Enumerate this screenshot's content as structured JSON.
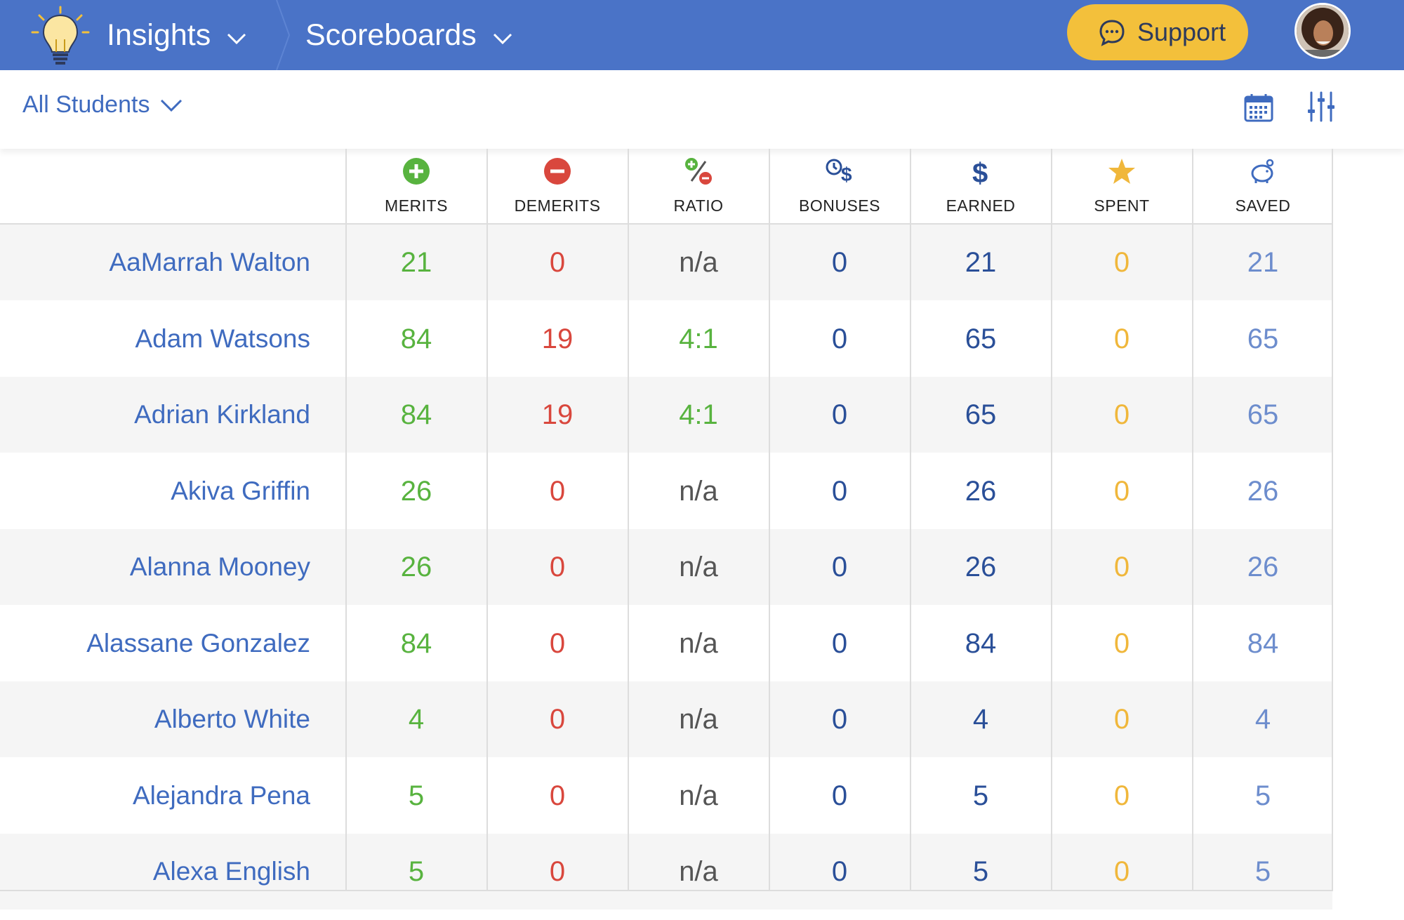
{
  "topbar": {
    "nav_insights": "Insights",
    "nav_scoreboards": "Scoreboards",
    "support_label": "Support",
    "colors": {
      "bar": "#4a73c7",
      "support": "#f3c03b"
    }
  },
  "filter": {
    "students_label": "All Students"
  },
  "icons": {
    "logo": "lightbulb-icon",
    "calendar": "calendar-icon",
    "filters": "sliders-icon",
    "support": "chat-bubble-icon"
  },
  "table": {
    "columns": [
      {
        "key": "merits",
        "label": "MERITS",
        "icon": "plus-circle-icon"
      },
      {
        "key": "demerits",
        "label": "DEMERITS",
        "icon": "minus-circle-icon"
      },
      {
        "key": "ratio",
        "label": "RATIO",
        "icon": "ratio-icon"
      },
      {
        "key": "bonuses",
        "label": "BONUSES",
        "icon": "bonus-clock-dollar-icon"
      },
      {
        "key": "earned",
        "label": "EARNED",
        "icon": "dollar-icon"
      },
      {
        "key": "spent",
        "label": "SPENT",
        "icon": "star-icon"
      },
      {
        "key": "saved",
        "label": "SAVED",
        "icon": "piggy-bank-icon"
      }
    ],
    "rows": [
      {
        "name": "AaMarrah Walton",
        "merits": "21",
        "demerits": "0",
        "ratio": "n/a",
        "bonuses": "0",
        "earned": "21",
        "spent": "0",
        "saved": "21"
      },
      {
        "name": "Adam Watsons",
        "merits": "84",
        "demerits": "19",
        "ratio": "4:1",
        "bonuses": "0",
        "earned": "65",
        "spent": "0",
        "saved": "65"
      },
      {
        "name": "Adrian Kirkland",
        "merits": "84",
        "demerits": "19",
        "ratio": "4:1",
        "bonuses": "0",
        "earned": "65",
        "spent": "0",
        "saved": "65"
      },
      {
        "name": "Akiva Griffin",
        "merits": "26",
        "demerits": "0",
        "ratio": "n/a",
        "bonuses": "0",
        "earned": "26",
        "spent": "0",
        "saved": "26"
      },
      {
        "name": "Alanna Mooney",
        "merits": "26",
        "demerits": "0",
        "ratio": "n/a",
        "bonuses": "0",
        "earned": "26",
        "spent": "0",
        "saved": "26"
      },
      {
        "name": "Alassane Gonzalez",
        "merits": "84",
        "demerits": "0",
        "ratio": "n/a",
        "bonuses": "0",
        "earned": "84",
        "spent": "0",
        "saved": "84"
      },
      {
        "name": "Alberto White",
        "merits": "4",
        "demerits": "0",
        "ratio": "n/a",
        "bonuses": "0",
        "earned": "4",
        "spent": "0",
        "saved": "4"
      },
      {
        "name": "Alejandra Pena",
        "merits": "5",
        "demerits": "0",
        "ratio": "n/a",
        "bonuses": "0",
        "earned": "5",
        "spent": "0",
        "saved": "5"
      },
      {
        "name": "Alexa English",
        "merits": "5",
        "demerits": "0",
        "ratio": "n/a",
        "bonuses": "0",
        "earned": "5",
        "spent": "0",
        "saved": "5"
      }
    ]
  }
}
